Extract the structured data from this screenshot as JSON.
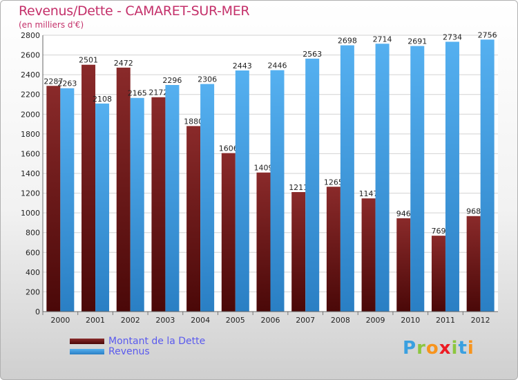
{
  "chart_data": {
    "type": "bar",
    "title": "Revenus/Dette - CAMARET-SUR-MER",
    "subtitle": "(en milliers d'€)",
    "categories": [
      "2000",
      "2001",
      "2002",
      "2003",
      "2004",
      "2005",
      "2006",
      "2007",
      "2008",
      "2009",
      "2010",
      "2011",
      "2012"
    ],
    "series": [
      {
        "name": "Montant de la Dette",
        "color": "#7a1a1a",
        "values": [
          2287,
          2501,
          2472,
          2172,
          1880,
          1606,
          1409,
          1211,
          1265,
          1147,
          946,
          769,
          968
        ],
        "labels": [
          "2287",
          "2501",
          "2472",
          "2172",
          "1880",
          "1606",
          "1409",
          "1211",
          "1265",
          "1147",
          "946",
          "769",
          "968"
        ]
      },
      {
        "name": "Revenus",
        "color": "#3d9be0",
        "values": [
          2263,
          2108,
          2165,
          2296,
          2306,
          2443,
          2446,
          2563,
          2698,
          2714,
          2691,
          2734,
          2756
        ],
        "labels": [
          "2263",
          "2108",
          "2165",
          "2296",
          "2306",
          "2443",
          "2446",
          "2563",
          "2698",
          "2714",
          "2691",
          "2734",
          "2756"
        ]
      }
    ],
    "ylim": [
      0,
      2800
    ],
    "yticks": [
      0,
      200,
      400,
      600,
      800,
      1000,
      1200,
      1400,
      1600,
      1800,
      2000,
      2200,
      2400,
      2600,
      2800
    ],
    "grid": true,
    "legend_position": "bottom-left"
  },
  "logo": {
    "letters": [
      "P",
      "r",
      "o",
      "x",
      "i",
      "t",
      "i"
    ],
    "colors": [
      "#3aa0e0",
      "#8cc63f",
      "#f7941d",
      "#ed1c24",
      "#8cc63f",
      "#3aa0e0",
      "#f7941d"
    ]
  }
}
